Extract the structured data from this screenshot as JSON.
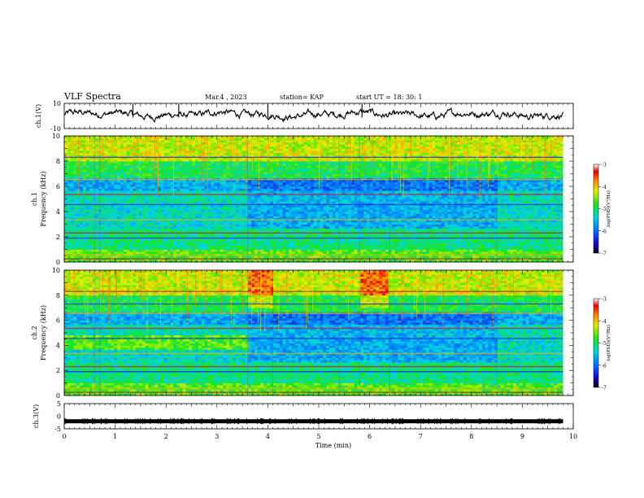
{
  "header": {
    "title": "VLF Spectra",
    "date": "Mar.4 , 2023",
    "station": "station= KAP",
    "start": "start UT = 18: 30: 1"
  },
  "chart_data": [
    {
      "type": "line",
      "panel": "ch1-waveform",
      "ylabel": "ch.1(V)",
      "ylim": [
        -10,
        10
      ],
      "yticks": [
        "10",
        "-10"
      ],
      "xlim": [
        0,
        10
      ],
      "data_extent_min": [
        0,
        9.8
      ],
      "series": [
        {
          "values_description_free": true,
          "sample_values": [
            2.1,
            4.8,
            -1.5,
            3.2,
            -4.0,
            2.6,
            0.8,
            -2.2,
            4.1,
            1.0,
            -3.5,
            2.9,
            -0.6,
            3.8,
            -2.7,
            1.4
          ]
        }
      ]
    },
    {
      "type": "heatmap",
      "panel": "ch1-spectrogram",
      "ylabel": "ch.1\nFrequency (kHz)",
      "ylabel_line1": "ch.1",
      "ylabel_line2": "Frequency (kHz)",
      "ylim": [
        0,
        10
      ],
      "yticks": [
        "0",
        "2",
        "4",
        "6",
        "8",
        "10"
      ],
      "xlim": [
        0,
        10
      ],
      "colorbar": {
        "label": "log(PSD)(V²/Hz)",
        "range": [
          -7,
          -3
        ],
        "ticks": [
          "-3",
          "-4",
          "-5",
          "-6",
          "-7"
        ]
      },
      "segments_min": [
        0,
        0.6,
        0.7,
        3.6,
        5.4,
        5.8,
        6.4,
        8.5,
        9.8
      ],
      "notable_lines_khz": [
        0.25,
        0.55,
        1.9,
        2.3,
        3.35,
        4.55,
        5.35,
        6.55,
        8.3
      ]
    },
    {
      "type": "heatmap",
      "panel": "ch2-spectrogram",
      "ylabel_line1": "ch.2",
      "ylabel_line2": "Frequency (kHz)",
      "ylim": [
        0,
        10
      ],
      "yticks": [
        "0",
        "2",
        "4",
        "6",
        "8",
        "10"
      ],
      "xlim": [
        0,
        10
      ],
      "colorbar": {
        "label": "log(PSD)(V²/Hz)",
        "range": [
          -7,
          -3
        ],
        "ticks": [
          "-3",
          "-4",
          "-5",
          "-6",
          "-7"
        ]
      },
      "segments_min": [
        0,
        0.6,
        0.7,
        3.6,
        4.1,
        5.4,
        5.8,
        6.4,
        8.5,
        9.8
      ],
      "notable_lines_khz": [
        0.25,
        0.55,
        1.9,
        2.3,
        3.35,
        4.55,
        5.35,
        6.55,
        7.3,
        8.3
      ]
    },
    {
      "type": "line",
      "panel": "ch3-waveform",
      "ylabel": "ch.3(V)",
      "ylim": [
        -5,
        5
      ],
      "yticks": [
        "5",
        "0",
        "-5"
      ],
      "xlim": [
        0,
        10
      ],
      "xlabel": "Time (min)",
      "xticks": [
        "0",
        "1",
        "2",
        "3",
        "4",
        "5",
        "6",
        "7",
        "8",
        "9",
        "10"
      ],
      "series": [
        {
          "level_v": -2.0,
          "band_v": [
            -2.8,
            -1.2
          ]
        }
      ]
    }
  ],
  "colors": {
    "axis": "#000000",
    "trace": "#000000",
    "background": "#ffffff"
  }
}
